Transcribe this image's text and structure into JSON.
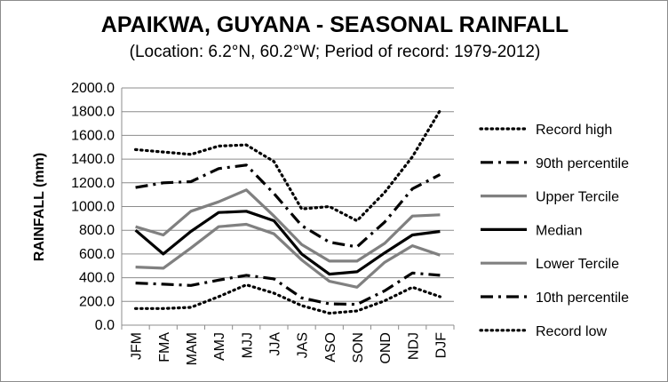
{
  "chart_data": {
    "type": "line",
    "title": "APAIKWA, GUYANA - SEASONAL RAINFALL",
    "subtitle": "(Location: 6.2°N, 60.2°W; Period of record: 1979-2012)",
    "ylabel": "RAINFALL (mm)",
    "xlabel": "",
    "ylim": [
      0,
      2000
    ],
    "ytick_step": 200,
    "ytick_labels": [
      "0.0",
      "200.0",
      "400.0",
      "600.0",
      "800.0",
      "1000.0",
      "1200.0",
      "1400.0",
      "1600.0",
      "1800.0",
      "2000.0"
    ],
    "grid": "horizontal",
    "legend_position": "right",
    "categories": [
      "JFM",
      "FMA",
      "MAM",
      "AMJ",
      "MJJ",
      "JJA",
      "JAS",
      "ASO",
      "SON",
      "OND",
      "NDJ",
      "DJF"
    ],
    "series": [
      {
        "name": "Record high",
        "style": "dotted",
        "color": "#000000",
        "values": [
          1480,
          1460,
          1440,
          1510,
          1520,
          1380,
          980,
          1000,
          880,
          1120,
          1420,
          1810
        ]
      },
      {
        "name": "90th percentile",
        "style": "dashdot",
        "color": "#000000",
        "values": [
          1160,
          1200,
          1210,
          1320,
          1350,
          1110,
          840,
          700,
          660,
          870,
          1150,
          1270
        ]
      },
      {
        "name": "Upper Tercile",
        "style": "solid",
        "color": "#808080",
        "values": [
          830,
          760,
          960,
          1040,
          1140,
          920,
          680,
          540,
          540,
          690,
          920,
          930
        ]
      },
      {
        "name": "Median",
        "style": "solid",
        "color": "#000000",
        "values": [
          800,
          600,
          790,
          950,
          960,
          880,
          600,
          430,
          450,
          610,
          760,
          790
        ]
      },
      {
        "name": "Lower Tercile",
        "style": "solid",
        "color": "#808080",
        "values": [
          490,
          480,
          650,
          830,
          850,
          770,
          550,
          370,
          320,
          530,
          670,
          590
        ]
      },
      {
        "name": "10th percentile",
        "style": "dashdot",
        "color": "#000000",
        "values": [
          355,
          345,
          335,
          380,
          420,
          390,
          230,
          180,
          175,
          290,
          440,
          420
        ]
      },
      {
        "name": "Record low",
        "style": "dotted",
        "color": "#000000",
        "values": [
          140,
          140,
          150,
          240,
          340,
          270,
          165,
          100,
          120,
          205,
          320,
          240
        ]
      }
    ]
  }
}
